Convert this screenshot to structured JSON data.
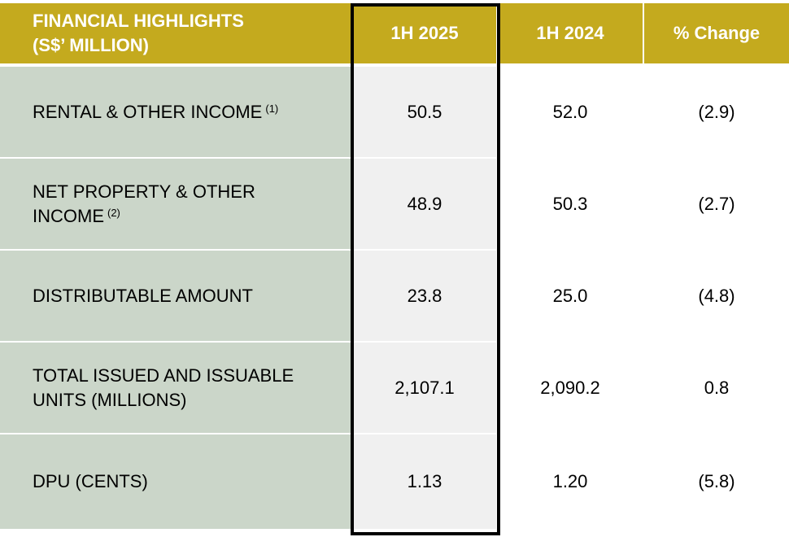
{
  "header": {
    "title_line1": "FINANCIAL HIGHLIGHTS",
    "title_line2": "(S$’ MILLION)",
    "col1": "1H 2025",
    "col2": "1H 2024",
    "col3": "% Change"
  },
  "rows": [
    {
      "label": "RENTAL & OTHER INCOME",
      "note": "(1)",
      "h2025": "50.5",
      "h2024": "52.0",
      "change": "(2.9)"
    },
    {
      "label_line1": "NET PROPERTY & OTHER",
      "label_line2": "INCOME",
      "note": "(2)",
      "h2025": "48.9",
      "h2024": "50.3",
      "change": "(2.7)"
    },
    {
      "label": "DISTRIBUTABLE AMOUNT",
      "h2025": "23.8",
      "h2024": "25.0",
      "change": "(4.8)"
    },
    {
      "label_line1": "TOTAL ISSUED AND ISSUABLE",
      "label_line2": "UNITS (MILLIONS)",
      "h2025": "2,107.1",
      "h2024": "2,090.2",
      "change": "0.8"
    },
    {
      "label": "DPU (CENTS)",
      "h2025": "1.13",
      "h2024": "1.20",
      "change": "(5.8)"
    }
  ],
  "colors": {
    "header_bg": "#c4aa1e",
    "label_bg": "#cbd6c9",
    "highlight_col_bg": "#f0f0f0",
    "border": "#000000"
  }
}
